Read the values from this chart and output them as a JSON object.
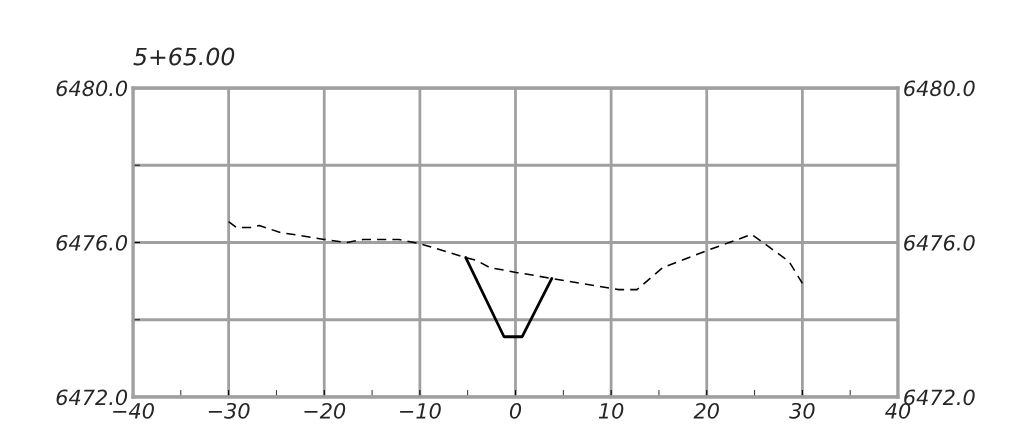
{
  "chart_data": {
    "type": "line",
    "title": "5+65.00",
    "series": [
      {
        "color": "#000000",
        "line_style": "dashed",
        "x": [
          -30,
          -29.2,
          -27.7,
          -26.8,
          -24.6,
          -20,
          -17.7,
          -15.9,
          -12.2,
          -10,
          -5.2,
          -4.0,
          -2.7,
          0.2,
          3.8,
          10.8,
          12.7,
          15.4,
          20,
          24.7,
          28.6,
          30
        ],
        "values": [
          6476.54,
          6476.39,
          6476.39,
          6476.44,
          6476.26,
          6476.08,
          6476.0,
          6476.08,
          6476.08,
          6475.97,
          6475.61,
          6475.53,
          6475.35,
          6475.22,
          6475.07,
          6474.78,
          6474.78,
          6475.35,
          6475.79,
          6476.21,
          6475.51,
          6474.94
        ]
      },
      {
        "color": "#000000",
        "line_style": "solid",
        "x": [
          -5.2,
          -1.2,
          0.7,
          3.8
        ],
        "values": [
          6475.61,
          6473.56,
          6473.56,
          6475.07
        ]
      }
    ],
    "xlim": [
      -40,
      40
    ],
    "xticks": [
      -40,
      {
        "value": -35,
        "label": null
      },
      -30,
      {
        "value": -25,
        "label": null
      },
      -20,
      {
        "value": -15,
        "label": null
      },
      -10,
      {
        "value": -5,
        "label": null
      },
      0,
      {
        "value": 5,
        "label": null
      },
      10,
      {
        "value": 15,
        "label": null
      },
      20,
      {
        "value": 25,
        "label": null
      },
      30,
      {
        "value": 35,
        "label": null
      },
      40
    ],
    "ylim": [
      6472,
      6480
    ],
    "yticks": [
      {
        "value": 6472,
        "label": "6472.0"
      },
      {
        "value": 6474,
        "label": null
      },
      {
        "value": 6476,
        "label": "6476.0"
      },
      {
        "value": 6478,
        "label": null
      },
      {
        "value": 6480,
        "label": "6480.0"
      }
    ],
    "y2lim": [
      6472,
      6480
    ],
    "y2ticks": [
      {
        "value": 6472,
        "label": "6472.0"
      },
      {
        "value": 6476,
        "label": "6476.0"
      },
      {
        "value": 6480,
        "label": "6480.0"
      }
    ],
    "grid": true,
    "legend": false
  }
}
